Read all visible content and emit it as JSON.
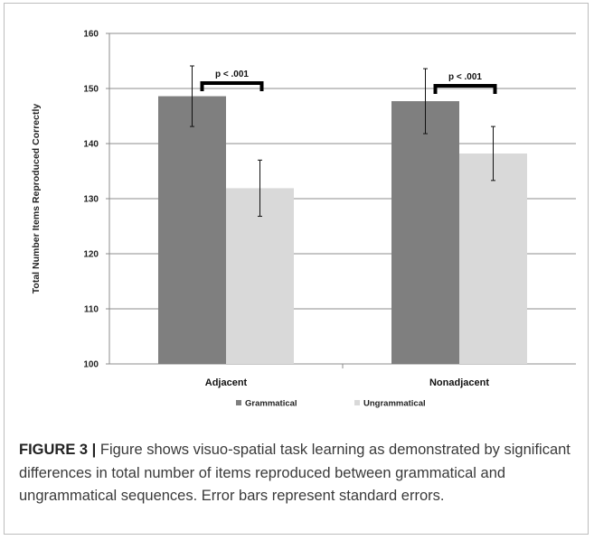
{
  "chart_data": {
    "type": "bar",
    "title": "",
    "xlabel": "",
    "ylabel": "Total Number Items Reproduced Correctly",
    "ylim": [
      100,
      160
    ],
    "yticks": [
      100,
      110,
      120,
      130,
      140,
      150,
      160
    ],
    "categories": [
      "Adjacent",
      "Nonadjacent"
    ],
    "series": [
      {
        "name": "Grammatical",
        "color": "#7f7f7f",
        "values": [
          148.6,
          147.7
        ],
        "errors": [
          5.5,
          5.9
        ]
      },
      {
        "name": "Ungrammatical",
        "color": "#d9d9d9",
        "values": [
          131.9,
          138.2
        ],
        "errors": [
          5.1,
          4.9
        ]
      }
    ],
    "annotations": [
      {
        "category": "Adjacent",
        "text": "p < .001"
      },
      {
        "category": "Nonadjacent",
        "text": "p < .001"
      }
    ],
    "grid": true,
    "legend_position": "bottom"
  },
  "caption": {
    "label": "FIGURE 3 |",
    "text": " Figure shows visuo-spatial task learning as demonstrated by significant differences in total number of items reproduced between grammatical and ungrammatical sequences. Error bars represent standard errors."
  }
}
